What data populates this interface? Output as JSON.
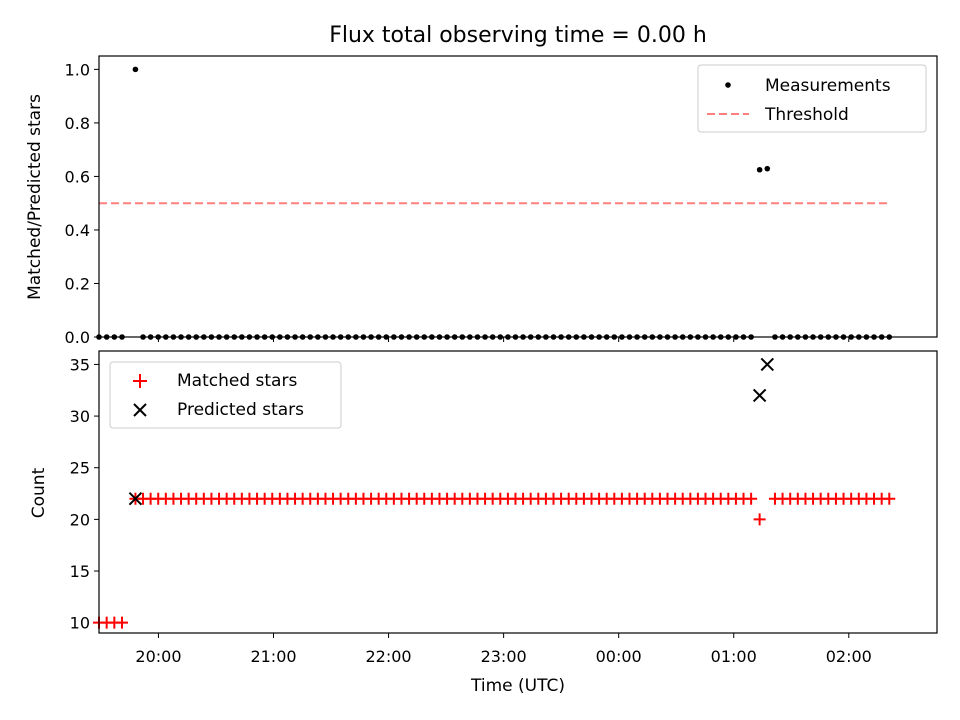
{
  "chart_data": [
    {
      "type": "scatter",
      "title": "Flux total observing time = 0.00 h",
      "ylabel": "Matched/Predicted stars",
      "xlabel": "",
      "xlim": [
        "19:29",
        "02:46"
      ],
      "ylim": [
        0,
        1.05
      ],
      "yticks": [
        "0.0",
        "0.2",
        "0.4",
        "0.6",
        "0.8",
        "1.0"
      ],
      "xticks": [
        "20:00",
        "21:00",
        "22:00",
        "23:00",
        "00:00",
        "01:00",
        "02:00"
      ],
      "legend": {
        "placement": "top-right",
        "entries": [
          "Measurements",
          "Threshold"
        ]
      },
      "series": [
        {
          "name": "Measurements",
          "color": "#000000",
          "marker": "dot",
          "points": [
            [
              "19:29:00",
              0
            ],
            [
              "19:33:00",
              0
            ],
            [
              "19:37:00",
              0
            ],
            [
              "19:41:00",
              0
            ],
            [
              "19:48:00",
              1.0
            ],
            [
              "19:51:58",
              0
            ],
            [
              "19:55:55",
              0
            ],
            [
              "19:59:53",
              0
            ],
            [
              "20:03:51",
              0
            ],
            [
              "20:07:49",
              0
            ],
            [
              "20:11:47",
              0
            ],
            [
              "20:15:45",
              0
            ],
            [
              "20:19:42",
              0
            ],
            [
              "20:23:40",
              0
            ],
            [
              "20:27:38",
              0
            ],
            [
              "20:31:36",
              0
            ],
            [
              "20:35:34",
              0
            ],
            [
              "20:39:32",
              0
            ],
            [
              "20:43:29",
              0
            ],
            [
              "20:47:27",
              0
            ],
            [
              "20:51:25",
              0
            ],
            [
              "20:55:23",
              0
            ],
            [
              "20:59:21",
              0
            ],
            [
              "21:03:19",
              0
            ],
            [
              "21:07:16",
              0
            ],
            [
              "21:11:14",
              0
            ],
            [
              "21:15:12",
              0
            ],
            [
              "21:19:10",
              0
            ],
            [
              "21:23:08",
              0
            ],
            [
              "21:27:06",
              0
            ],
            [
              "21:31:03",
              0
            ],
            [
              "21:35:01",
              0
            ],
            [
              "21:38:59",
              0
            ],
            [
              "21:42:57",
              0
            ],
            [
              "21:46:55",
              0
            ],
            [
              "21:50:53",
              0
            ],
            [
              "21:54:50",
              0
            ],
            [
              "21:58:48",
              0
            ],
            [
              "22:02:46",
              0
            ],
            [
              "22:06:44",
              0
            ],
            [
              "22:10:42",
              0
            ],
            [
              "22:14:40",
              0
            ],
            [
              "22:18:37",
              0
            ],
            [
              "22:22:35",
              0
            ],
            [
              "22:26:33",
              0
            ],
            [
              "22:30:31",
              0
            ],
            [
              "22:34:29",
              0
            ],
            [
              "22:38:27",
              0
            ],
            [
              "22:42:24",
              0
            ],
            [
              "22:46:22",
              0
            ],
            [
              "22:50:20",
              0
            ],
            [
              "22:54:18",
              0
            ],
            [
              "22:58:16",
              0
            ],
            [
              "23:02:14",
              0
            ],
            [
              "23:06:11",
              0
            ],
            [
              "23:10:09",
              0
            ],
            [
              "23:14:07",
              0
            ],
            [
              "23:18:05",
              0
            ],
            [
              "23:22:03",
              0
            ],
            [
              "23:26:01",
              0
            ],
            [
              "23:29:58",
              0
            ],
            [
              "23:33:56",
              0
            ],
            [
              "23:37:54",
              0
            ],
            [
              "23:41:52",
              0
            ],
            [
              "23:45:50",
              0
            ],
            [
              "23:49:48",
              0
            ],
            [
              "23:53:45",
              0
            ],
            [
              "23:57:43",
              0
            ],
            [
              "00:01:41",
              0
            ],
            [
              "00:05:39",
              0
            ],
            [
              "00:09:37",
              0
            ],
            [
              "00:13:35",
              0
            ],
            [
              "00:17:32",
              0
            ],
            [
              "00:21:30",
              0
            ],
            [
              "00:25:28",
              0
            ],
            [
              "00:29:26",
              0
            ],
            [
              "00:33:24",
              0
            ],
            [
              "00:37:22",
              0
            ],
            [
              "00:41:19",
              0
            ],
            [
              "00:45:17",
              0
            ],
            [
              "00:49:15",
              0
            ],
            [
              "00:53:13",
              0
            ],
            [
              "00:57:11",
              0
            ],
            [
              "01:01:09",
              0
            ],
            [
              "01:05:06",
              0
            ],
            [
              "01:09:04",
              0
            ],
            [
              "01:13:30",
              0.625
            ],
            [
              "01:17:30",
              0.629
            ],
            [
              "01:21:30",
              0
            ],
            [
              "01:25:28",
              0
            ],
            [
              "01:29:27",
              0
            ],
            [
              "01:33:25",
              0
            ],
            [
              "01:37:24",
              0
            ],
            [
              "01:41:22",
              0
            ],
            [
              "01:45:21",
              0
            ],
            [
              "01:49:19",
              0
            ],
            [
              "01:53:18",
              0
            ],
            [
              "01:57:16",
              0
            ],
            [
              "02:01:15",
              0
            ],
            [
              "02:05:13",
              0
            ],
            [
              "02:09:12",
              0
            ],
            [
              "02:13:10",
              0
            ],
            [
              "02:17:09",
              0
            ],
            [
              "02:21:07",
              0
            ]
          ]
        },
        {
          "name": "Threshold",
          "color": "#ff7f7f",
          "style": "dashed",
          "points": [
            [
              "19:29:00",
              0.5
            ],
            [
              "02:21:00",
              0.5
            ]
          ]
        }
      ],
      "grid": false
    },
    {
      "type": "scatter",
      "title": "",
      "ylabel": "Count",
      "xlabel": "Time (UTC)",
      "xlim": [
        "19:29",
        "02:46"
      ],
      "ylim": [
        9,
        36.3
      ],
      "yticks": [
        "10",
        "15",
        "20",
        "25",
        "30",
        "35"
      ],
      "xticks": [
        "20:00",
        "21:00",
        "22:00",
        "23:00",
        "00:00",
        "01:00",
        "02:00"
      ],
      "legend": {
        "placement": "top-left",
        "entries": [
          "Matched stars",
          "Predicted stars"
        ]
      },
      "series": [
        {
          "name": "Matched stars",
          "color": "#ff0000",
          "marker": "plus",
          "points": [
            [
              "19:29:00",
              10
            ],
            [
              "19:33:00",
              10
            ],
            [
              "19:37:00",
              10
            ],
            [
              "19:41:00",
              10
            ],
            [
              "19:48:00",
              22
            ],
            [
              "19:51:58",
              22
            ],
            [
              "19:55:55",
              22
            ],
            [
              "19:59:53",
              22
            ],
            [
              "20:03:51",
              22
            ],
            [
              "20:07:49",
              22
            ],
            [
              "20:11:47",
              22
            ],
            [
              "20:15:45",
              22
            ],
            [
              "20:19:42",
              22
            ],
            [
              "20:23:40",
              22
            ],
            [
              "20:27:38",
              22
            ],
            [
              "20:31:36",
              22
            ],
            [
              "20:35:34",
              22
            ],
            [
              "20:39:32",
              22
            ],
            [
              "20:43:29",
              22
            ],
            [
              "20:47:27",
              22
            ],
            [
              "20:51:25",
              22
            ],
            [
              "20:55:23",
              22
            ],
            [
              "20:59:21",
              22
            ],
            [
              "21:03:19",
              22
            ],
            [
              "21:07:16",
              22
            ],
            [
              "21:11:14",
              22
            ],
            [
              "21:15:12",
              22
            ],
            [
              "21:19:10",
              22
            ],
            [
              "21:23:08",
              22
            ],
            [
              "21:27:06",
              22
            ],
            [
              "21:31:03",
              22
            ],
            [
              "21:35:01",
              22
            ],
            [
              "21:38:59",
              22
            ],
            [
              "21:42:57",
              22
            ],
            [
              "21:46:55",
              22
            ],
            [
              "21:50:53",
              22
            ],
            [
              "21:54:50",
              22
            ],
            [
              "21:58:48",
              22
            ],
            [
              "22:02:46",
              22
            ],
            [
              "22:06:44",
              22
            ],
            [
              "22:10:42",
              22
            ],
            [
              "22:14:40",
              22
            ],
            [
              "22:18:37",
              22
            ],
            [
              "22:22:35",
              22
            ],
            [
              "22:26:33",
              22
            ],
            [
              "22:30:31",
              22
            ],
            [
              "22:34:29",
              22
            ],
            [
              "22:38:27",
              22
            ],
            [
              "22:42:24",
              22
            ],
            [
              "22:46:22",
              22
            ],
            [
              "22:50:20",
              22
            ],
            [
              "22:54:18",
              22
            ],
            [
              "22:58:16",
              22
            ],
            [
              "23:02:14",
              22
            ],
            [
              "23:06:11",
              22
            ],
            [
              "23:10:09",
              22
            ],
            [
              "23:14:07",
              22
            ],
            [
              "23:18:05",
              22
            ],
            [
              "23:22:03",
              22
            ],
            [
              "23:26:01",
              22
            ],
            [
              "23:29:58",
              22
            ],
            [
              "23:33:56",
              22
            ],
            [
              "23:37:54",
              22
            ],
            [
              "23:41:52",
              22
            ],
            [
              "23:45:50",
              22
            ],
            [
              "23:49:48",
              22
            ],
            [
              "23:53:45",
              22
            ],
            [
              "23:57:43",
              22
            ],
            [
              "00:01:41",
              22
            ],
            [
              "00:05:39",
              22
            ],
            [
              "00:09:37",
              22
            ],
            [
              "00:13:35",
              22
            ],
            [
              "00:17:32",
              22
            ],
            [
              "00:21:30",
              22
            ],
            [
              "00:25:28",
              22
            ],
            [
              "00:29:26",
              22
            ],
            [
              "00:33:24",
              22
            ],
            [
              "00:37:22",
              22
            ],
            [
              "00:41:19",
              22
            ],
            [
              "00:45:17",
              22
            ],
            [
              "00:49:15",
              22
            ],
            [
              "00:53:13",
              22
            ],
            [
              "00:57:11",
              22
            ],
            [
              "01:01:09",
              22
            ],
            [
              "01:05:06",
              22
            ],
            [
              "01:09:04",
              22
            ],
            [
              "01:13:30",
              20
            ],
            [
              "01:21:30",
              22
            ],
            [
              "01:25:28",
              22
            ],
            [
              "01:29:27",
              22
            ],
            [
              "01:33:25",
              22
            ],
            [
              "01:37:24",
              22
            ],
            [
              "01:41:22",
              22
            ],
            [
              "01:45:21",
              22
            ],
            [
              "01:49:19",
              22
            ],
            [
              "01:53:18",
              22
            ],
            [
              "01:57:16",
              22
            ],
            [
              "02:01:15",
              22
            ],
            [
              "02:05:13",
              22
            ],
            [
              "02:09:12",
              22
            ],
            [
              "02:13:10",
              22
            ],
            [
              "02:17:09",
              22
            ],
            [
              "02:21:07",
              22
            ]
          ]
        },
        {
          "name": "Predicted stars",
          "color": "#000000",
          "marker": "x",
          "points": [
            [
              "19:48:00",
              22
            ],
            [
              "01:13:30",
              32
            ],
            [
              "01:17:30",
              35
            ]
          ]
        }
      ],
      "grid": false
    }
  ]
}
